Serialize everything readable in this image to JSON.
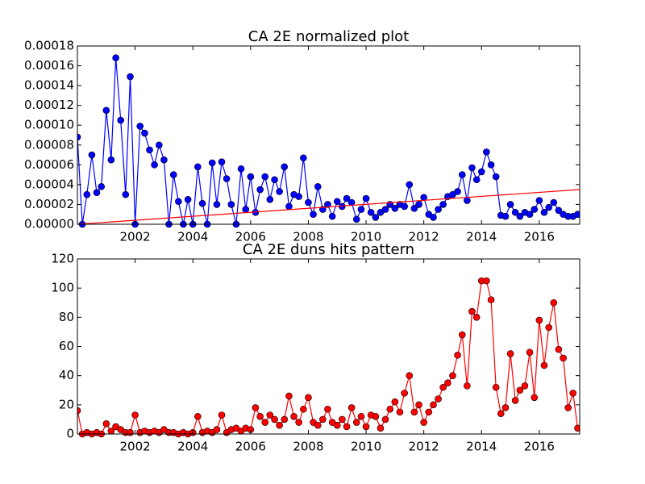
{
  "chart_data": [
    {
      "type": "line",
      "title": "CA 2E normalized plot",
      "x": [
        2000,
        2000.17,
        2000.33,
        2000.5,
        2000.67,
        2000.83,
        2001,
        2001.17,
        2001.33,
        2001.5,
        2001.67,
        2001.83,
        2002,
        2002.17,
        2002.33,
        2002.5,
        2002.67,
        2002.83,
        2003,
        2003.17,
        2003.33,
        2003.5,
        2003.67,
        2003.83,
        2004,
        2004.17,
        2004.33,
        2004.5,
        2004.67,
        2004.83,
        2005,
        2005.17,
        2005.33,
        2005.5,
        2005.67,
        2005.83,
        2006,
        2006.17,
        2006.33,
        2006.5,
        2006.67,
        2006.83,
        2007,
        2007.17,
        2007.33,
        2007.5,
        2007.67,
        2007.83,
        2008,
        2008.17,
        2008.33,
        2008.5,
        2008.67,
        2008.83,
        2009,
        2009.17,
        2009.33,
        2009.5,
        2009.67,
        2009.83,
        2010,
        2010.17,
        2010.33,
        2010.5,
        2010.67,
        2010.83,
        2011,
        2011.17,
        2011.33,
        2011.5,
        2011.67,
        2011.83,
        2012,
        2012.17,
        2012.33,
        2012.5,
        2012.67,
        2012.83,
        2013,
        2013.17,
        2013.33,
        2013.5,
        2013.67,
        2013.83,
        2014,
        2014.17,
        2014.33,
        2014.5,
        2014.67,
        2014.83,
        2015,
        2015.17,
        2015.33,
        2015.5,
        2015.67,
        2015.83,
        2016,
        2016.17,
        2016.33,
        2016.5,
        2016.67,
        2016.83,
        2017,
        2017.17,
        2017.33
      ],
      "series": [
        {
          "color": "#0000ff",
          "marker": true,
          "values": [
            8.8e-05,
            0,
            3e-05,
            7e-05,
            3.2e-05,
            3.8e-05,
            0.000115,
            6.5e-05,
            0.000168,
            0.000105,
            3e-05,
            0.000149,
            0,
            9.9e-05,
            9.2e-05,
            7.5e-05,
            6e-05,
            8e-05,
            6.5e-05,
            0,
            5e-05,
            2.3e-05,
            0,
            2.5e-05,
            0,
            5.8e-05,
            2.1e-05,
            0,
            6.2e-05,
            2e-05,
            6.3e-05,
            4.6e-05,
            2e-05,
            0,
            5.6e-05,
            1.5e-05,
            4.8e-05,
            1.2e-05,
            3.5e-05,
            4.8e-05,
            2.5e-05,
            4.5e-05,
            3.3e-05,
            5.8e-05,
            1.8e-05,
            3e-05,
            2.8e-05,
            6.7e-05,
            2.2e-05,
            1e-05,
            3.8e-05,
            1.5e-05,
            2e-05,
            8e-06,
            2.3e-05,
            1.8e-05,
            2.6e-05,
            2.2e-05,
            5e-06,
            1.5e-05,
            2.6e-05,
            1.2e-05,
            7e-06,
            1.2e-05,
            1.5e-05,
            2e-05,
            1.6e-05,
            2e-05,
            1.8e-05,
            4e-05,
            1.6e-05,
            2e-05,
            2.7e-05,
            1e-05,
            7e-06,
            1.5e-05,
            2e-05,
            2.8e-05,
            3e-05,
            3.3e-05,
            5e-05,
            2.4e-05,
            5.7e-05,
            4.5e-05,
            5.3e-05,
            7.3e-05,
            6e-05,
            4.8e-05,
            9e-06,
            8e-06,
            2e-05,
            1.2e-05,
            8e-06,
            1.2e-05,
            1e-05,
            1.5e-05,
            2.4e-05,
            1.2e-05,
            1.7e-05,
            2.2e-05,
            1.4e-05,
            1e-05,
            8e-06,
            8e-06,
            1e-05
          ]
        },
        {
          "color": "#ff0000",
          "marker": false,
          "x": [
            2000,
            2017.4
          ],
          "values": [
            0,
            3.5e-05
          ]
        }
      ],
      "xlim": [
        2000,
        2017.4
      ],
      "xticks": [
        2002,
        2004,
        2006,
        2008,
        2010,
        2012,
        2014,
        2016
      ],
      "ylim": [
        0,
        0.00018
      ],
      "yticks": [
        {
          "value": 0,
          "label": "0.00000"
        },
        {
          "value": 2e-05,
          "label": "0.00002"
        },
        {
          "value": 4e-05,
          "label": "0.00004"
        },
        {
          "value": 6e-05,
          "label": "0.00006"
        },
        {
          "value": 8e-05,
          "label": "0.00008"
        },
        {
          "value": 0.0001,
          "label": "0.00010"
        },
        {
          "value": 0.00012,
          "label": "0.00012"
        },
        {
          "value": 0.00014,
          "label": "0.00014"
        },
        {
          "value": 0.00016,
          "label": "0.00016"
        },
        {
          "value": 0.00018,
          "label": "0.00018"
        }
      ]
    },
    {
      "type": "line",
      "title": "CA 2E duns hits pattern",
      "x": [
        2000,
        2000.17,
        2000.33,
        2000.5,
        2000.67,
        2000.83,
        2001,
        2001.17,
        2001.33,
        2001.5,
        2001.67,
        2001.83,
        2002,
        2002.17,
        2002.33,
        2002.5,
        2002.67,
        2002.83,
        2003,
        2003.17,
        2003.33,
        2003.5,
        2003.67,
        2003.83,
        2004,
        2004.17,
        2004.33,
        2004.5,
        2004.67,
        2004.83,
        2005,
        2005.17,
        2005.33,
        2005.5,
        2005.67,
        2005.83,
        2006,
        2006.17,
        2006.33,
        2006.5,
        2006.67,
        2006.83,
        2007,
        2007.17,
        2007.33,
        2007.5,
        2007.67,
        2007.83,
        2008,
        2008.17,
        2008.33,
        2008.5,
        2008.67,
        2008.83,
        2009,
        2009.17,
        2009.33,
        2009.5,
        2009.67,
        2009.83,
        2010,
        2010.17,
        2010.33,
        2010.5,
        2010.67,
        2010.83,
        2011,
        2011.17,
        2011.33,
        2011.5,
        2011.67,
        2011.83,
        2012,
        2012.17,
        2012.33,
        2012.5,
        2012.67,
        2012.83,
        2013,
        2013.17,
        2013.33,
        2013.5,
        2013.67,
        2013.83,
        2014,
        2014.17,
        2014.33,
        2014.5,
        2014.67,
        2014.83,
        2015,
        2015.17,
        2015.33,
        2015.5,
        2015.67,
        2015.83,
        2016,
        2016.17,
        2016.33,
        2016.5,
        2016.67,
        2016.83,
        2017,
        2017.17,
        2017.33
      ],
      "series": [
        {
          "color": "#ff0000",
          "marker": true,
          "values": [
            16,
            0,
            1,
            0,
            1,
            0,
            7,
            2,
            5,
            3,
            1,
            1,
            13,
            1,
            2,
            1,
            2,
            1,
            3,
            1,
            1,
            0,
            1,
            0,
            1,
            12,
            1,
            2,
            1,
            3,
            13,
            1,
            3,
            4,
            2,
            4,
            3,
            18,
            12,
            8,
            13,
            10,
            6,
            10,
            26,
            12,
            8,
            17,
            25,
            8,
            6,
            10,
            17,
            8,
            6,
            10,
            5,
            18,
            8,
            12,
            5,
            13,
            12,
            4,
            10,
            17,
            22,
            15,
            28,
            40,
            15,
            20,
            8,
            15,
            20,
            24,
            32,
            35,
            40,
            54,
            68,
            33,
            84,
            80,
            105,
            105,
            92,
            32,
            14,
            18,
            55,
            23,
            30,
            33,
            56,
            25,
            78,
            47,
            73,
            90,
            58,
            52,
            18,
            28,
            4
          ]
        }
      ],
      "xlim": [
        2000,
        2017.4
      ],
      "xticks": [
        2002,
        2004,
        2006,
        2008,
        2010,
        2012,
        2014,
        2016
      ],
      "ylim": [
        0,
        120
      ],
      "yticks": [
        0,
        20,
        40,
        60,
        80,
        100,
        120
      ]
    }
  ]
}
